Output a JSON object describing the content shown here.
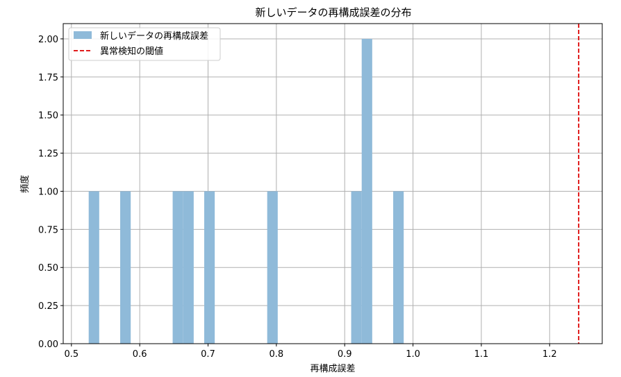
{
  "chart_data": {
    "type": "bar",
    "title": "新しいデータの再構成誤差の分布",
    "xlabel": "再構成誤差",
    "ylabel": "頻度",
    "xlim": [
      0.488,
      1.277
    ],
    "ylim": [
      0,
      2.1
    ],
    "xticks": [
      "0.5",
      "0.6",
      "0.7",
      "0.8",
      "0.9",
      "1.0",
      "1.1",
      "1.2"
    ],
    "xtick_values": [
      0.5,
      0.6,
      0.7,
      0.8,
      0.9,
      1.0,
      1.1,
      1.2
    ],
    "yticks": [
      "0.00",
      "0.25",
      "0.50",
      "0.75",
      "1.00",
      "1.25",
      "1.50",
      "1.75",
      "2.00"
    ],
    "ytick_values": [
      0,
      0.25,
      0.5,
      0.75,
      1.0,
      1.25,
      1.5,
      1.75,
      2.0
    ],
    "grid": true,
    "legend_position": "top-left",
    "bar_color": "#8fbad9",
    "threshold_color": "#e01b1b",
    "series": [
      {
        "name": "新しいデータの再構成誤差",
        "type": "histogram",
        "bins": [
          {
            "x0": 0.5253,
            "x1": 0.5407,
            "count": 1
          },
          {
            "x0": 0.5714,
            "x1": 0.5868,
            "count": 1
          },
          {
            "x0": 0.6482,
            "x1": 0.6636,
            "count": 1
          },
          {
            "x0": 0.6636,
            "x1": 0.679,
            "count": 1
          },
          {
            "x0": 0.6944,
            "x1": 0.7098,
            "count": 1
          },
          {
            "x0": 0.7866,
            "x1": 0.802,
            "count": 1
          },
          {
            "x0": 0.9095,
            "x1": 0.9249,
            "count": 1
          },
          {
            "x0": 0.9249,
            "x1": 0.9403,
            "count": 2
          },
          {
            "x0": 0.971,
            "x1": 0.9864,
            "count": 1
          }
        ]
      },
      {
        "name": "異常検知の閾値",
        "type": "vline",
        "x": 1.2425
      }
    ]
  }
}
